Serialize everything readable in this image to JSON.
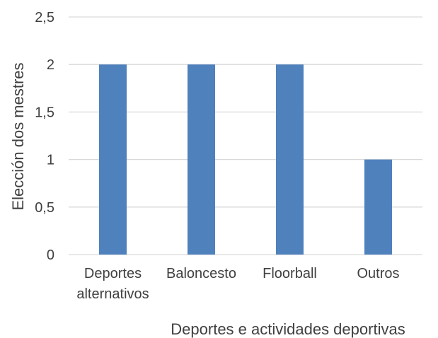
{
  "chart_data": {
    "type": "bar",
    "categories": [
      [
        "Deportes",
        "alternativos"
      ],
      [
        "Baloncesto"
      ],
      [
        "Floorball"
      ],
      [
        "Outros"
      ]
    ],
    "values": [
      2,
      2,
      2,
      1
    ],
    "xlabel": "Deportes e actividades deportivas",
    "ylabel": "Elección dos mestres",
    "ylim": [
      0,
      2.5
    ],
    "yticks": [
      "0",
      "0,5",
      "1",
      "1,5",
      "2",
      "2,5"
    ],
    "grid": true,
    "bar_color": "#4f81bd"
  }
}
